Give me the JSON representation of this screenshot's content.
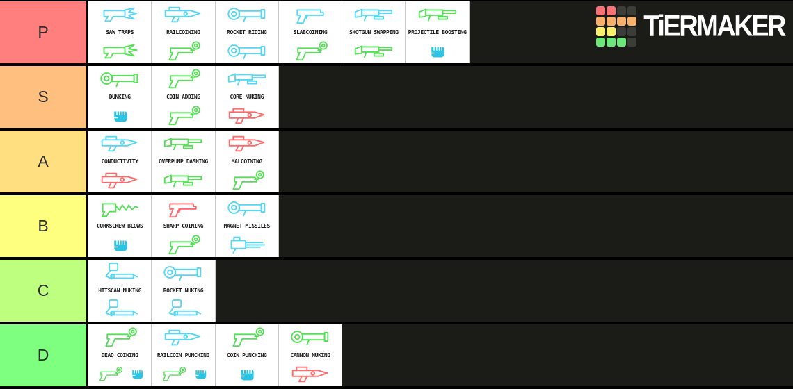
{
  "page": {
    "background": "#1b1b18",
    "row_border": "#000000",
    "cell_background": "#ffffff"
  },
  "logo": {
    "text": "TiERMAKER",
    "grid_colors": [
      "#fb7276",
      "#fb7276",
      "#3d3d38",
      "#3d3d38",
      "#f8b06a",
      "#f8b06a",
      "#f8b06a",
      "#f8b06a",
      "#faf06c",
      "#faf06c",
      "#3d3d38",
      "#3d3d38",
      "#6ce87a",
      "#6ce87a",
      "#6ce87a",
      "#3d3d38"
    ]
  },
  "colors": {
    "cyan": "#55d6f3",
    "green": "#55df57",
    "red": "#ff6b6b",
    "blue": "#2bc3e4"
  },
  "tiers": [
    {
      "label": "P",
      "color": "#ff7f7f",
      "items": [
        {
          "label": "SAW TRAPS",
          "top": [
            "saw-launcher:cyan"
          ],
          "bottom": [
            "saw-launcher:green"
          ]
        },
        {
          "label": "RAILCOINING",
          "top": [
            "railcannon:cyan"
          ],
          "bottom": [
            "revolver-coin:green"
          ]
        },
        {
          "label": "ROCKET RIDING",
          "top": [
            "rocket-launcher:cyan"
          ],
          "bottom": [
            "rocket-launcher:cyan"
          ]
        },
        {
          "label": "SLABCOINING",
          "top": [
            "revolver:cyan"
          ],
          "bottom": [
            "revolver-coin:green"
          ]
        },
        {
          "label": "SHOTGUN SWAPPING",
          "top": [
            "shotgun:cyan"
          ],
          "bottom": [
            "shotgun:green"
          ]
        },
        {
          "label": "PROJECTILE BOOSTING",
          "top": [
            "shotgun:green"
          ],
          "bottom": [
            "fist:blue"
          ]
        }
      ]
    },
    {
      "label": "S",
      "color": "#ffbf7f",
      "items": [
        {
          "label": "DUNKING",
          "top": [
            "rocket-launcher:green"
          ],
          "bottom": [
            "fist:blue"
          ]
        },
        {
          "label": "COIN ADDING",
          "top": [
            "revolver-coin:green"
          ],
          "bottom": [
            "revolver-coin:green"
          ]
        },
        {
          "label": "CORE NUKING",
          "top": [
            "shotgun:cyan"
          ],
          "bottom": [
            "railcannon:red"
          ]
        }
      ]
    },
    {
      "label": "A",
      "color": "#ffdf7f",
      "items": [
        {
          "label": "CONDUCTIVITY",
          "top": [
            "railcannon:cyan"
          ],
          "bottom": [
            "railcannon:red"
          ]
        },
        {
          "label": "OVERPUMP DASHING",
          "top": [
            "shotgun:green"
          ],
          "bottom": [
            "shotgun:green"
          ]
        },
        {
          "label": "MALCOINING",
          "top": [
            "railcannon:red"
          ],
          "bottom": [
            "revolver-coin:green"
          ]
        }
      ]
    },
    {
      "label": "B",
      "color": "#ffff7f",
      "items": [
        {
          "label": "CORKSCREW BLOWS",
          "top": [
            "drill-launcher:green"
          ],
          "bottom": [
            "fist:blue"
          ]
        },
        {
          "label": "SHARP COINING",
          "top": [
            "revolver:red"
          ],
          "bottom": [
            "revolver-coin:green"
          ]
        },
        {
          "label": "MAGNET MISSILES",
          "top": [
            "rocket-launcher:cyan"
          ],
          "bottom": [
            "attractor-nailgun:cyan"
          ]
        }
      ]
    },
    {
      "label": "C",
      "color": "#bfff7f",
      "items": [
        {
          "label": "HITSCAN NUKING",
          "top": [
            "nuke-contraption:cyan"
          ],
          "bottom": [
            "nuke-contraption:cyan"
          ]
        },
        {
          "label": "ROCKET NUKING",
          "top": [
            "rocket-launcher:cyan"
          ],
          "bottom": [
            "nuke-contraption:cyan"
          ]
        }
      ]
    },
    {
      "label": "D",
      "color": "#7fff7f",
      "items": [
        {
          "label": "DEAD COINING",
          "top": [
            "revolver-coin:green"
          ],
          "bottom": [
            "revolver-coin:green",
            "fist:blue"
          ]
        },
        {
          "label": "RAILCOIN PUNCHING",
          "top": [
            "railcannon:cyan"
          ],
          "bottom": [
            "revolver-coin:green",
            "fist:blue"
          ]
        },
        {
          "label": "COIN PUNCHING",
          "top": [
            "revolver-coin:green"
          ],
          "bottom": [
            "fist:blue"
          ]
        },
        {
          "label": "CANNON NUKING",
          "top": [
            "rocket-launcher:green"
          ],
          "bottom": [
            "railcannon:red"
          ]
        }
      ]
    }
  ]
}
